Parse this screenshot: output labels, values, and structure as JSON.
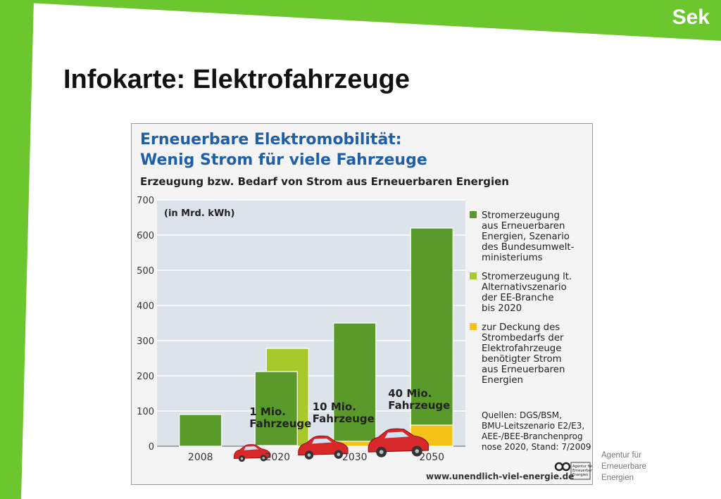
{
  "slide": {
    "badge": "Sek",
    "title": "Infokarte: Elektrofahrzeuge",
    "credit_lines": [
      "Agentur für",
      "Erneuerbare",
      "Energien"
    ],
    "accent_color": "#6cc62e"
  },
  "chart_data": {
    "type": "bar",
    "title_lines": [
      "Erneuerbare Elektromobilität:",
      "Wenig Strom für viele Fahrzeuge"
    ],
    "subtitle": "Erzeugung bzw. Bedarf von Strom aus Erneuerbaren Energien",
    "unit_label": "(in Mrd. kWh)",
    "categories": [
      "2008",
      "2020",
      "2030",
      "2050"
    ],
    "ylim": [
      0,
      700
    ],
    "yticks": [
      0,
      100,
      200,
      300,
      400,
      500,
      600,
      700
    ],
    "grid": true,
    "legend_position": "right",
    "series": [
      {
        "name": "Stromerzeugung aus Erneuerbaren Energien, Szenario des Bundesumweltministeriums",
        "legend_lines": [
          "Stromerzeugung",
          "aus Erneuerbaren",
          "Energien, Szenario",
          "des Bundesumwelt-",
          "ministeriums"
        ],
        "color": "#5a9a2a",
        "values": [
          90,
          212,
          350,
          620
        ]
      },
      {
        "name": "Stromerzeugung lt. Alternativszenario der EE-Branche bis 2020",
        "legend_lines": [
          "Stromerzeugung lt.",
          "Alternativszenario",
          "der EE-Branche",
          "bis 2020"
        ],
        "color": "#a8c92a",
        "values": [
          null,
          278,
          null,
          null
        ]
      },
      {
        "name": "zur Deckung des Strombedarfs der Elektrofahrzeuge benötigter Strom aus Erneuerbaren Energien",
        "legend_lines": [
          "zur Deckung des",
          "Strombedarfs der",
          "Elektrofahrzeuge",
          "benötigter Strom",
          "aus Erneuerbaren",
          "Energien"
        ],
        "color": "#f5c21a",
        "values": [
          null,
          2,
          14,
          60
        ]
      }
    ],
    "annotations": [
      {
        "category": "2020",
        "lines": [
          "1 Mio.",
          "Fahrzeuge"
        ]
      },
      {
        "category": "2030",
        "lines": [
          "10 Mio.",
          "Fahrzeuge"
        ]
      },
      {
        "category": "2050",
        "lines": [
          "40 Mio.",
          "Fahrzeuge"
        ]
      }
    ],
    "sources_lines": [
      "Quellen: DGS/BSM,",
      "BMU-Leitszenario E2/E3,",
      "AEE-/BEE-Branchenprog",
      "nose 2020, Stand: 7/2009"
    ],
    "footer_url": "www.unendlich-viel-energie.de",
    "logo_text": [
      "Agentur für",
      "Erneuerbare",
      "Energien"
    ]
  }
}
